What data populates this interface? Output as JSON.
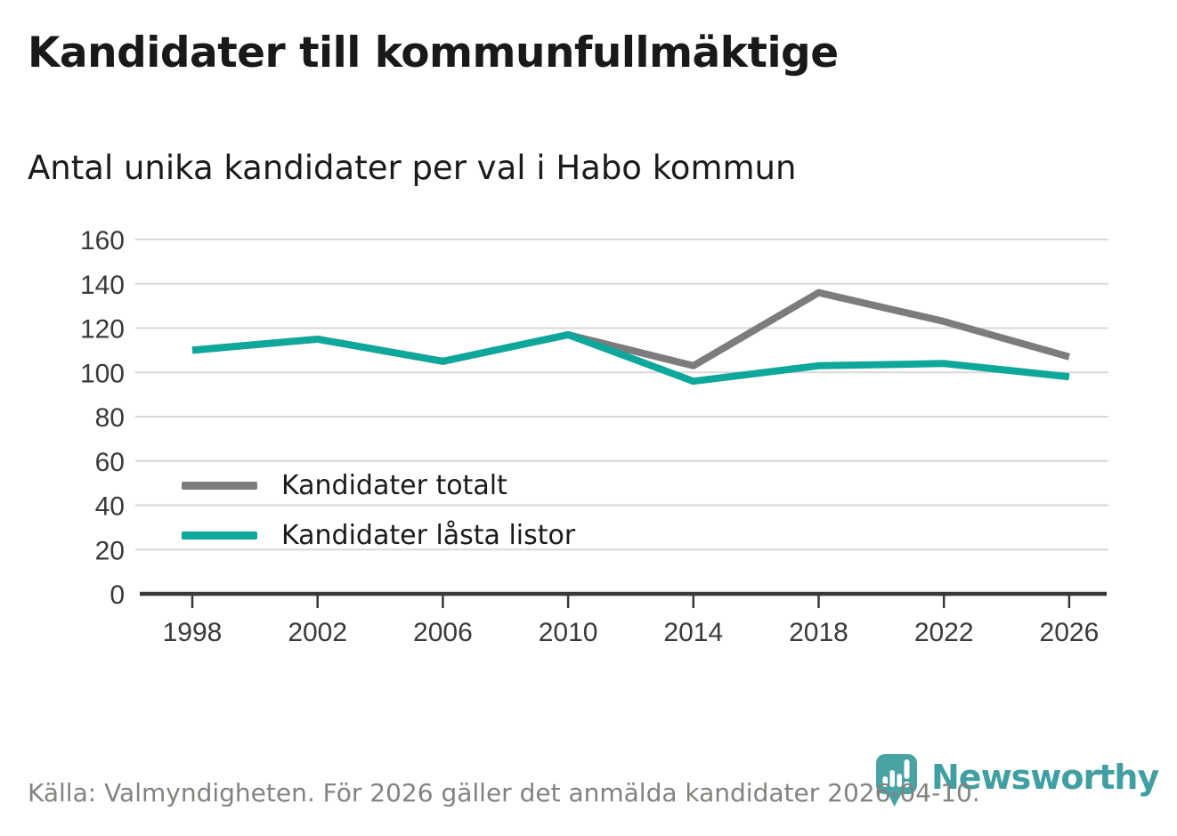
{
  "header": {
    "title": "Kandidater till kommunfullmäktige",
    "subtitle": "Antal unika kandidater per val i Habo kommun"
  },
  "chart_data": {
    "type": "line",
    "title": "Kandidater till kommunfullmäktige",
    "subtitle": "Antal unika kandidater per val i Habo kommun",
    "categories": [
      "1998",
      "2002",
      "2006",
      "2010",
      "2014",
      "2018",
      "2022",
      "2026"
    ],
    "series": [
      {
        "name": "Kandidater totalt",
        "color": "#7c7c7c",
        "values": [
          110,
          115,
          105,
          117,
          103,
          136,
          123,
          107
        ]
      },
      {
        "name": "Kandidater låsta listor",
        "color": "#0ea79b",
        "values": [
          110,
          115,
          105,
          117,
          96,
          103,
          104,
          98
        ]
      }
    ],
    "xlabel": "",
    "ylabel": "",
    "ylim": [
      0,
      160
    ],
    "y_ticks": [
      "0",
      "20",
      "40",
      "60",
      "80",
      "100",
      "120",
      "140",
      "160"
    ],
    "grid": "horizontal",
    "legend_position": "inside-bottom-left"
  },
  "footer": {
    "source": "Källa: Valmyndigheten. För 2026 gäller det anmälda kandidater 2026-04-10.",
    "brand": "Newsworthy"
  },
  "colors": {
    "series_total": "#7c7c7c",
    "series_locked": "#0ea79b",
    "gridline": "#d8d8d8",
    "axis": "#383838",
    "tick_text": "#3a3a3a",
    "text": "#1b1b1b",
    "muted_text": "#83827e",
    "brand_teal": "#3f9fa2",
    "brand_icon_teal": "#4aa3a3"
  }
}
